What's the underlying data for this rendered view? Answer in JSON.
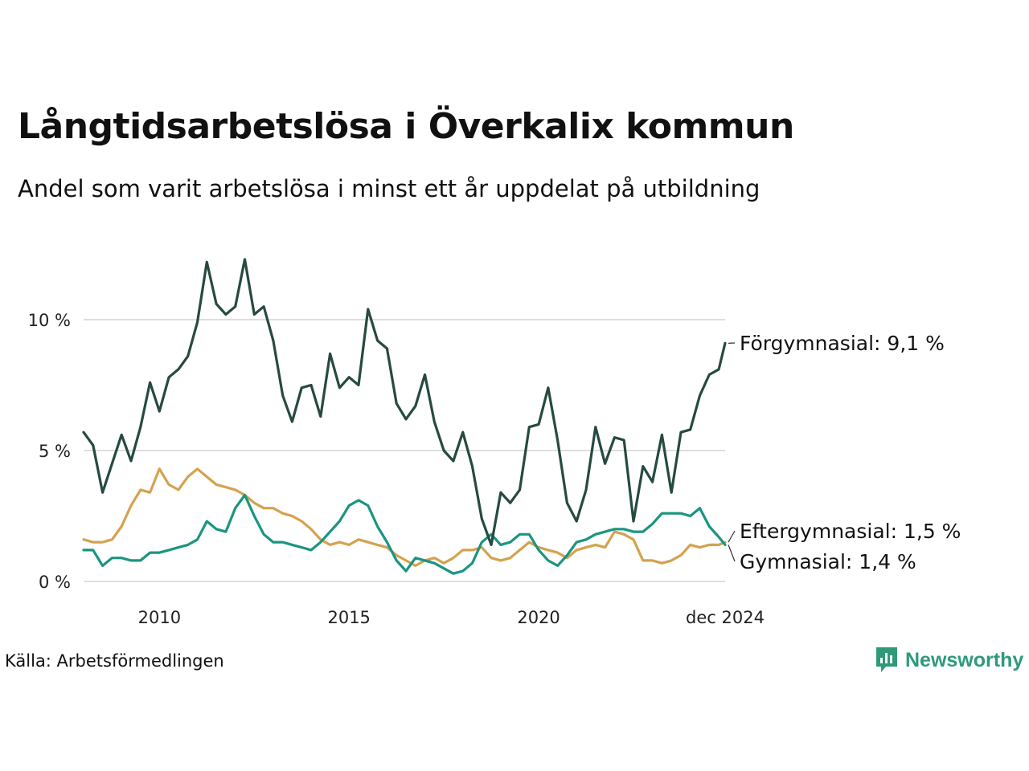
{
  "header": {
    "title": "Långtidsarbetslösa i Överkalix kommun",
    "subtitle": "Andel som varit arbetslösa i minst ett år uppdelat på utbildning"
  },
  "footer": {
    "source": "Källa: Arbetsförmedlingen",
    "brand": "Newsworthy"
  },
  "chart_data": {
    "type": "line",
    "title": "Långtidsarbetslösa i Överkalix kommun",
    "subtitle": "Andel som varit arbetslösa i minst ett år uppdelat på utbildning",
    "xlabel": "",
    "ylabel": "",
    "x_range": [
      2008.0,
      2024.917
    ],
    "ylim": [
      0,
      12
    ],
    "y_ticks": [
      0,
      5,
      10
    ],
    "y_tick_labels": [
      "0 %",
      "5 %",
      "10 %"
    ],
    "x_ticks": [
      2010,
      2015,
      2020,
      2024.917
    ],
    "x_tick_labels": [
      "2010",
      "2015",
      "2020",
      "dec 2024"
    ],
    "grid": true,
    "legend": "direct labels at line ends (right)",
    "series": [
      {
        "name": "Förgymnasial",
        "end_label": "Förgymnasial: 9,1 %",
        "color": "#264a42",
        "x": [
          2008.0,
          2008.25,
          2008.5,
          2008.75,
          2009.0,
          2009.25,
          2009.5,
          2009.75,
          2010.0,
          2010.25,
          2010.5,
          2010.75,
          2011.0,
          2011.25,
          2011.5,
          2011.75,
          2012.0,
          2012.25,
          2012.5,
          2012.75,
          2013.0,
          2013.25,
          2013.5,
          2013.75,
          2014.0,
          2014.25,
          2014.5,
          2014.75,
          2015.0,
          2015.25,
          2015.5,
          2015.75,
          2016.0,
          2016.25,
          2016.5,
          2016.75,
          2017.0,
          2017.25,
          2017.5,
          2017.75,
          2018.0,
          2018.25,
          2018.5,
          2018.75,
          2019.0,
          2019.25,
          2019.5,
          2019.75,
          2020.0,
          2020.25,
          2020.5,
          2020.75,
          2021.0,
          2021.25,
          2021.5,
          2021.75,
          2022.0,
          2022.25,
          2022.5,
          2022.75,
          2023.0,
          2023.25,
          2023.5,
          2023.75,
          2024.0,
          2024.25,
          2024.5,
          2024.75,
          2024.917
        ],
        "y": [
          5.7,
          5.2,
          3.4,
          4.5,
          5.6,
          4.6,
          5.9,
          7.6,
          6.5,
          7.8,
          8.1,
          8.6,
          9.9,
          12.2,
          10.6,
          10.2,
          10.5,
          12.3,
          10.2,
          10.5,
          9.2,
          7.1,
          6.1,
          7.4,
          7.5,
          6.3,
          8.7,
          7.4,
          7.8,
          7.5,
          10.4,
          9.2,
          8.9,
          6.8,
          6.2,
          6.7,
          7.9,
          6.1,
          5.0,
          4.6,
          5.7,
          4.4,
          2.4,
          1.4,
          3.4,
          3.0,
          3.5,
          5.9,
          6.0,
          7.4,
          5.4,
          3.0,
          2.3,
          3.5,
          5.9,
          4.5,
          5.5,
          5.4,
          2.3,
          4.4,
          3.8,
          5.6,
          3.4,
          5.7,
          5.8,
          7.1,
          7.9,
          8.1,
          9.1
        ]
      },
      {
        "name": "Eftergymnasial",
        "end_label": "Eftergymnasial: 1,5 %",
        "color": "#d4a24f",
        "x": [
          2008.0,
          2008.25,
          2008.5,
          2008.75,
          2009.0,
          2009.25,
          2009.5,
          2009.75,
          2010.0,
          2010.25,
          2010.5,
          2010.75,
          2011.0,
          2011.25,
          2011.5,
          2011.75,
          2012.0,
          2012.25,
          2012.5,
          2012.75,
          2013.0,
          2013.25,
          2013.5,
          2013.75,
          2014.0,
          2014.25,
          2014.5,
          2014.75,
          2015.0,
          2015.25,
          2015.5,
          2015.75,
          2016.0,
          2016.25,
          2016.5,
          2016.75,
          2017.0,
          2017.25,
          2017.5,
          2017.75,
          2018.0,
          2018.25,
          2018.5,
          2018.75,
          2019.0,
          2019.25,
          2019.5,
          2019.75,
          2020.0,
          2020.25,
          2020.5,
          2020.75,
          2021.0,
          2021.25,
          2021.5,
          2021.75,
          2022.0,
          2022.25,
          2022.5,
          2022.75,
          2023.0,
          2023.25,
          2023.5,
          2023.75,
          2024.0,
          2024.25,
          2024.5,
          2024.75,
          2024.917
        ],
        "y": [
          1.6,
          1.5,
          1.5,
          1.6,
          2.1,
          2.9,
          3.5,
          3.4,
          4.3,
          3.7,
          3.5,
          4.0,
          4.3,
          4.0,
          3.7,
          3.6,
          3.5,
          3.3,
          3.0,
          2.8,
          2.8,
          2.6,
          2.5,
          2.3,
          2.0,
          1.6,
          1.4,
          1.5,
          1.4,
          1.6,
          1.5,
          1.4,
          1.3,
          1.0,
          0.8,
          0.6,
          0.8,
          0.9,
          0.7,
          0.9,
          1.2,
          1.2,
          1.3,
          0.9,
          0.8,
          0.9,
          1.2,
          1.5,
          1.3,
          1.2,
          1.1,
          0.9,
          1.2,
          1.3,
          1.4,
          1.3,
          1.9,
          1.8,
          1.6,
          0.8,
          0.8,
          0.7,
          0.8,
          1.0,
          1.4,
          1.3,
          1.4,
          1.4,
          1.5
        ]
      },
      {
        "name": "Gymnasial",
        "end_label": "Gymnasial: 1,4 %",
        "color": "#1a9580",
        "x": [
          2008.0,
          2008.25,
          2008.5,
          2008.75,
          2009.0,
          2009.25,
          2009.5,
          2009.75,
          2010.0,
          2010.25,
          2010.5,
          2010.75,
          2011.0,
          2011.25,
          2011.5,
          2011.75,
          2012.0,
          2012.25,
          2012.5,
          2012.75,
          2013.0,
          2013.25,
          2013.5,
          2013.75,
          2014.0,
          2014.25,
          2014.5,
          2014.75,
          2015.0,
          2015.25,
          2015.5,
          2015.75,
          2016.0,
          2016.25,
          2016.5,
          2016.75,
          2017.0,
          2017.25,
          2017.5,
          2017.75,
          2018.0,
          2018.25,
          2018.5,
          2018.75,
          2019.0,
          2019.25,
          2019.5,
          2019.75,
          2020.0,
          2020.25,
          2020.5,
          2020.75,
          2021.0,
          2021.25,
          2021.5,
          2021.75,
          2022.0,
          2022.25,
          2022.5,
          2022.75,
          2023.0,
          2023.25,
          2023.5,
          2023.75,
          2024.0,
          2024.25,
          2024.5,
          2024.75,
          2024.917
        ],
        "y": [
          1.2,
          1.2,
          0.6,
          0.9,
          0.9,
          0.8,
          0.8,
          1.1,
          1.1,
          1.2,
          1.3,
          1.4,
          1.6,
          2.3,
          2.0,
          1.9,
          2.8,
          3.3,
          2.5,
          1.8,
          1.5,
          1.5,
          1.4,
          1.3,
          1.2,
          1.5,
          1.9,
          2.3,
          2.9,
          3.1,
          2.9,
          2.1,
          1.5,
          0.8,
          0.4,
          0.9,
          0.8,
          0.7,
          0.5,
          0.3,
          0.4,
          0.7,
          1.5,
          1.8,
          1.4,
          1.5,
          1.8,
          1.8,
          1.2,
          0.8,
          0.6,
          1.0,
          1.5,
          1.6,
          1.8,
          1.9,
          2.0,
          2.0,
          1.9,
          1.9,
          2.2,
          2.6,
          2.6,
          2.6,
          2.5,
          2.8,
          2.1,
          1.7,
          1.4
        ]
      }
    ]
  }
}
